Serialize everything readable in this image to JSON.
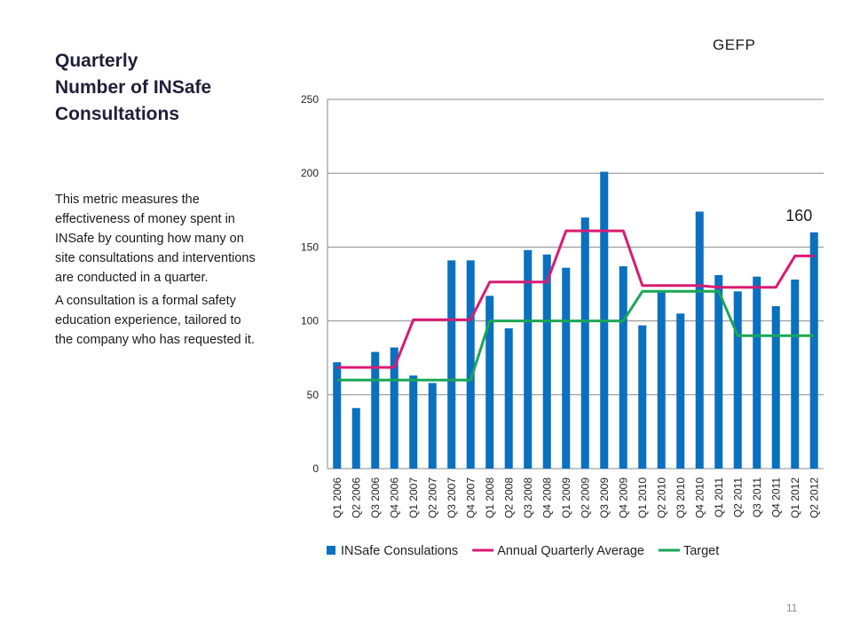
{
  "slide": {
    "title_lines": [
      "Quarterly",
      "Number of INSafe",
      "Consultations"
    ],
    "corner_label": "GEFP",
    "description": [
      "This  metric measures  the effectiveness of money spent in INSafe by counting how many on site consultations and interventions are conducted in a quarter.",
      "A consultation is a formal safety education experience, tailored to the company who has requested it."
    ],
    "page_number": "11"
  },
  "chart_data": {
    "type": "bar",
    "title": "",
    "xlabel": "",
    "ylabel": "",
    "ylim": [
      0,
      250
    ],
    "yticks": [
      0,
      50,
      100,
      150,
      200,
      250
    ],
    "grid": true,
    "legend_position": "bottom",
    "categories": [
      "Q1 2006",
      "Q2 2006",
      "Q3 2006",
      "Q4 2006",
      "Q1 2007",
      "Q2 2007",
      "Q3 2007",
      "Q4 2007",
      "Q1 2008",
      "Q2 2008",
      "Q3 2008",
      "Q4 2008",
      "Q1 2009",
      "Q2 2009",
      "Q3 2009",
      "Q4 2009",
      "Q1 2010",
      "Q2 2010",
      "Q3 2010",
      "Q4 2010",
      "Q1 2011",
      "Q2 2011",
      "Q3 2011",
      "Q4 2011",
      "Q1 2012",
      "Q2 2012"
    ],
    "series": [
      {
        "name": "INSafe Consulations",
        "kind": "bar",
        "color": "#0a70c0",
        "values": [
          72,
          41,
          79,
          82,
          63,
          58,
          141,
          141,
          117,
          95,
          148,
          145,
          136,
          170,
          201,
          137,
          97,
          120,
          105,
          174,
          131,
          120,
          130,
          110,
          128,
          160
        ]
      },
      {
        "name": "Annual Quarterly Average",
        "kind": "step-line",
        "color": "#d81b72",
        "values": [
          68.5,
          68.5,
          68.5,
          68.5,
          100.8,
          100.8,
          100.8,
          100.8,
          126.3,
          126.3,
          126.3,
          126.3,
          161,
          161,
          161,
          161,
          124,
          124,
          124,
          124,
          122.8,
          122.8,
          122.8,
          122.8,
          144,
          144
        ]
      },
      {
        "name": "Target",
        "kind": "step-line",
        "color": "#1aa655",
        "values": [
          60,
          60,
          60,
          60,
          60,
          60,
          60,
          60,
          100,
          100,
          100,
          100,
          100,
          100,
          100,
          100,
          120,
          120,
          120,
          120,
          120,
          90,
          90,
          90,
          90,
          90
        ]
      }
    ],
    "annotations": [
      {
        "text": "160",
        "category_index": 25,
        "value": 160
      }
    ]
  }
}
